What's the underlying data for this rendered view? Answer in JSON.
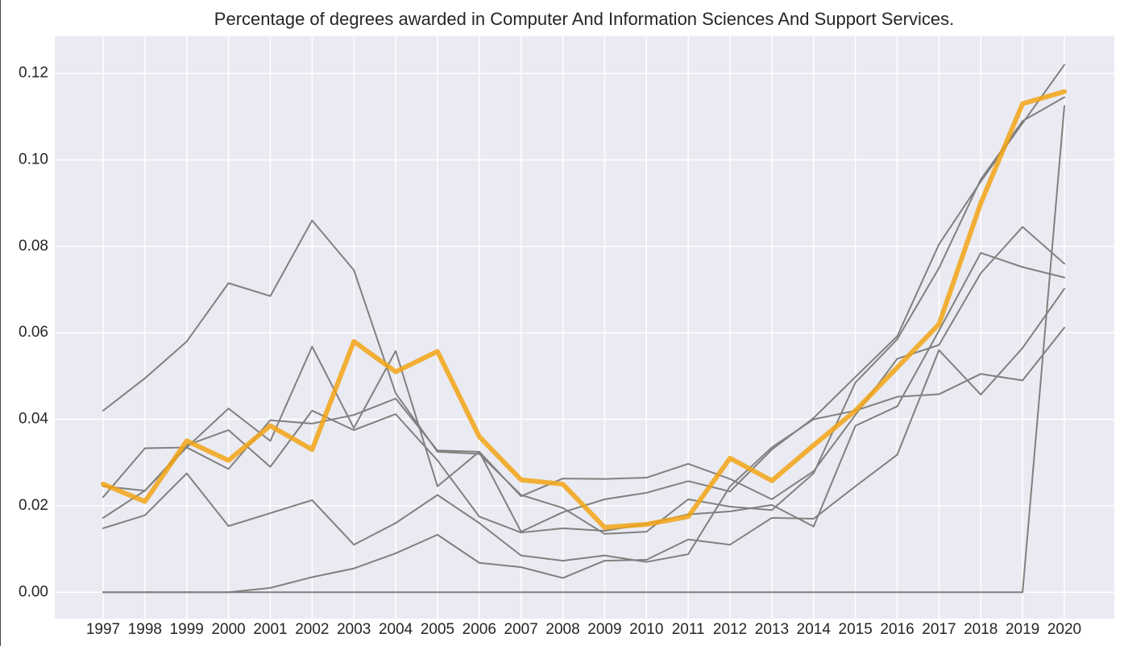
{
  "chart_data": {
    "type": "line",
    "title": "Percentage of degrees awarded in Computer And Information Sciences And Support Services.",
    "x": [
      "1997",
      "1998",
      "1999",
      "2000",
      "2001",
      "2002",
      "2003",
      "2004",
      "2005",
      "2006",
      "2007",
      "2008",
      "2009",
      "2010",
      "2011",
      "2012",
      "2013",
      "2014",
      "2015",
      "2016",
      "2017",
      "2018",
      "2019",
      "2020"
    ],
    "ylim": [
      -0.0061,
      0.1286
    ],
    "yticks": [
      {
        "value": 0,
        "label": "0.00"
      },
      {
        "value": 0.02,
        "label": "0.02"
      },
      {
        "value": 0.04,
        "label": "0.04"
      },
      {
        "value": 0.06,
        "label": "0.06"
      },
      {
        "value": 0.08,
        "label": "0.08"
      },
      {
        "value": 0.1,
        "label": "0.10"
      },
      {
        "value": 0.12,
        "label": "0.12"
      }
    ],
    "grid": true,
    "series": [
      {
        "color": "#808080",
        "values": [
          0.042,
          0.0495,
          0.058,
          0.0715,
          0.0685,
          0.086,
          0.0745,
          0.046,
          0.0325,
          0.032,
          0.0225,
          0.0195,
          0.0135,
          0.014,
          0.0215,
          0.0198,
          0.019,
          0.0275,
          0.0485,
          0.0585,
          0.075,
          0.0955,
          0.109,
          0.1145
        ]
      },
      {
        "color": "#808080",
        "values": [
          0,
          0,
          0,
          0,
          0,
          0,
          0,
          0,
          0,
          0,
          0,
          0,
          0,
          0,
          0,
          0,
          0,
          0,
          0,
          0,
          0,
          0,
          0,
          0.1125
        ]
      },
      {
        "color": "#808080",
        "values": [
          0,
          0,
          0,
          0,
          0.001,
          0.0035,
          0.0055,
          0.009,
          0.0133,
          0.0068,
          0.0058,
          0.0033,
          0.0073,
          0.0075,
          0.0122,
          0.011,
          0.0172,
          0.017,
          0.0245,
          0.0318,
          0.056,
          0.0457,
          0.0565,
          0.0702
        ]
      },
      {
        "color": "#808080",
        "values": [
          0.0148,
          0.0178,
          0.0275,
          0.0153,
          0.0183,
          0.0213,
          0.011,
          0.016,
          0.0225,
          0.016,
          0.0085,
          0.0073,
          0.0085,
          0.007,
          0.0088,
          0.0245,
          0.0335,
          0.04,
          0.042,
          0.0452,
          0.0458,
          0.0505,
          0.049,
          0.0612
        ]
      },
      {
        "color": "#808080",
        "values": [
          0.0172,
          0.0235,
          0.034,
          0.0375,
          0.029,
          0.042,
          0.0375,
          0.0412,
          0.0305,
          0.0175,
          0.0138,
          0.0148,
          0.0142,
          0.0158,
          0.018,
          0.0187,
          0.0202,
          0.0152,
          0.0385,
          0.043,
          0.0605,
          0.0785,
          0.0752,
          0.0728
        ]
      },
      {
        "color": "#808080",
        "values": [
          0.022,
          0.0333,
          0.0335,
          0.0285,
          0.0398,
          0.039,
          0.041,
          0.0448,
          0.0328,
          0.0325,
          0.014,
          0.0185,
          0.0215,
          0.023,
          0.0257,
          0.0233,
          0.033,
          0.0403,
          0.0498,
          0.0592,
          0.0805,
          0.095,
          0.1085,
          0.122
        ]
      },
      {
        "color": "#808080",
        "values": [
          0.0245,
          0.0235,
          0.0335,
          0.0425,
          0.035,
          0.0568,
          0.038,
          0.0558,
          0.0245,
          0.0325,
          0.0222,
          0.0263,
          0.0262,
          0.0265,
          0.0297,
          0.0262,
          0.0215,
          0.028,
          0.041,
          0.054,
          0.0572,
          0.0738,
          0.0845,
          0.076
        ]
      },
      {
        "color": "#f2a515",
        "values": [
          0.025,
          0.021,
          0.035,
          0.0305,
          0.0385,
          0.033,
          0.058,
          0.051,
          0.0557,
          0.036,
          0.026,
          0.025,
          0.015,
          0.0157,
          0.0175,
          0.031,
          0.0258,
          0.034,
          0.042,
          0.052,
          0.062,
          0.09,
          0.113,
          0.1158
        ]
      }
    ]
  }
}
